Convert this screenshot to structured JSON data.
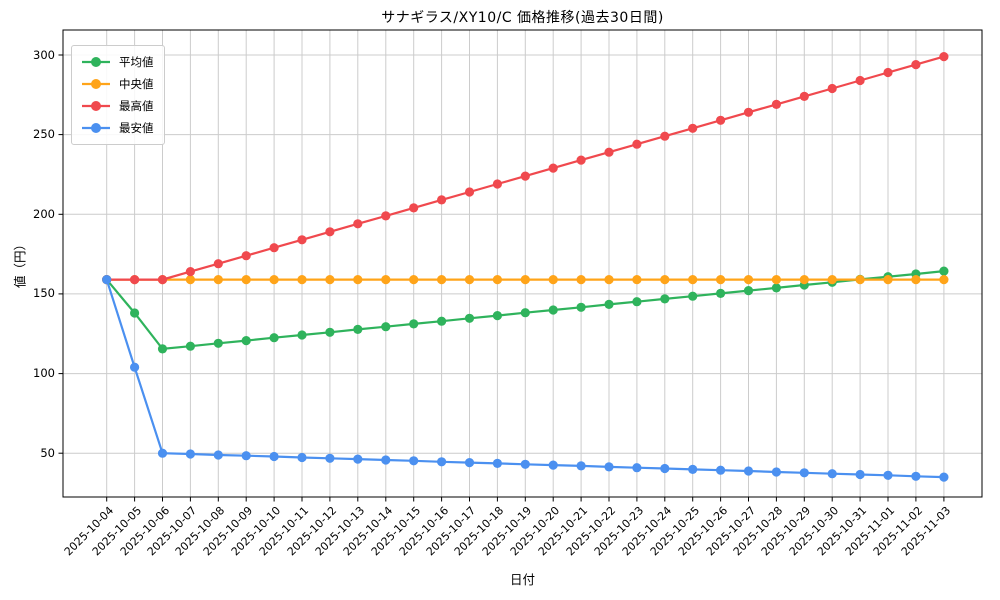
{
  "chart_data": {
    "type": "line",
    "title": "サナギラス/XY10/C 価格推移(過去30日間)",
    "xlabel": "日付",
    "ylabel": "値（円）",
    "categories": [
      "2025-10-04",
      "2025-10-05",
      "2025-10-06",
      "2025-10-07",
      "2025-10-08",
      "2025-10-09",
      "2025-10-10",
      "2025-10-11",
      "2025-10-12",
      "2025-10-13",
      "2025-10-14",
      "2025-10-15",
      "2025-10-16",
      "2025-10-17",
      "2025-10-18",
      "2025-10-19",
      "2025-10-20",
      "2025-10-21",
      "2025-10-22",
      "2025-10-23",
      "2025-10-24",
      "2025-10-25",
      "2025-10-26",
      "2025-10-27",
      "2025-10-28",
      "2025-10-29",
      "2025-10-30",
      "2025-10-31",
      "2025-11-01",
      "2025-11-02",
      "2025-11-03"
    ],
    "series": [
      {
        "key": "average",
        "name": "平均値",
        "color": "#2fb35c",
        "values": [
          159,
          138,
          115.5,
          117.2,
          119,
          120.7,
          122.5,
          124.2,
          125.9,
          127.7,
          129.4,
          131.2,
          132.9,
          134.7,
          136.4,
          138.2,
          139.9,
          141.6,
          143.4,
          145.1,
          146.9,
          148.6,
          150.3,
          152.1,
          153.8,
          155.6,
          157.3,
          159.1,
          160.8,
          162.5,
          164.3
        ]
      },
      {
        "key": "median",
        "name": "中央値",
        "color": "#ffa419",
        "values": [
          159,
          159,
          159,
          159,
          159,
          159,
          159,
          159,
          159,
          159,
          159,
          159,
          159,
          159,
          159,
          159,
          159,
          159,
          159,
          159,
          159,
          159,
          159,
          159,
          159,
          159,
          159,
          159,
          159,
          159,
          159
        ]
      },
      {
        "key": "highest",
        "name": "最高値",
        "color": "#f0494e",
        "values": [
          159,
          159,
          159,
          164,
          169,
          174,
          179,
          184,
          189,
          194,
          199,
          204,
          209,
          214,
          219,
          224,
          229,
          234,
          239,
          244,
          249,
          254,
          259,
          264,
          269,
          274,
          279,
          284,
          289,
          294,
          299
        ]
      },
      {
        "key": "lowest",
        "name": "最安値",
        "color": "#4b90f0",
        "values": [
          159,
          104,
          50,
          49.5,
          48.9,
          48.4,
          47.9,
          47.3,
          46.8,
          46.3,
          45.7,
          45.2,
          44.6,
          44.1,
          43.6,
          43,
          42.5,
          42,
          41.4,
          40.9,
          40.4,
          39.8,
          39.3,
          38.8,
          38.2,
          37.7,
          37.1,
          36.6,
          36.1,
          35.5,
          35
        ]
      }
    ],
    "yticks": [
      50,
      100,
      150,
      200,
      250,
      300
    ],
    "ylim": [
      22.5,
      315.7
    ],
    "grid": true,
    "legend_position": "upper-left"
  },
  "colors": {
    "grid": "#cccccc",
    "spine": "#000000",
    "background": "#ffffff"
  }
}
